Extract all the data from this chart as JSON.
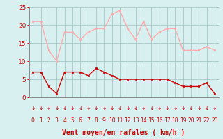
{
  "hours": [
    0,
    1,
    2,
    3,
    4,
    5,
    6,
    7,
    8,
    9,
    10,
    11,
    12,
    13,
    14,
    15,
    16,
    17,
    18,
    19,
    20,
    21,
    22,
    23
  ],
  "wind_avg": [
    7,
    7,
    3,
    1,
    7,
    7,
    7,
    6,
    8,
    7,
    6,
    5,
    5,
    5,
    5,
    5,
    5,
    5,
    4,
    3,
    3,
    3,
    4,
    1
  ],
  "wind_gust": [
    21,
    21,
    13,
    10,
    18,
    18,
    16,
    18,
    19,
    19,
    23,
    24,
    19,
    16,
    21,
    16,
    18,
    19,
    19,
    13,
    13,
    13,
    14,
    13
  ],
  "wind_avg_color": "#cc0000",
  "wind_gust_color": "#ffaaaa",
  "background_color": "#d8f0f0",
  "grid_color": "#aacccc",
  "xlabel": "Vent moyen/en rafales ( km/h )",
  "xlabel_color": "#cc0000",
  "tick_color": "#cc0000",
  "ylim": [
    0,
    25
  ],
  "yticks": [
    0,
    5,
    10,
    15,
    20,
    25
  ],
  "arrow_color": "#cc0000",
  "spine_color": "#888888"
}
